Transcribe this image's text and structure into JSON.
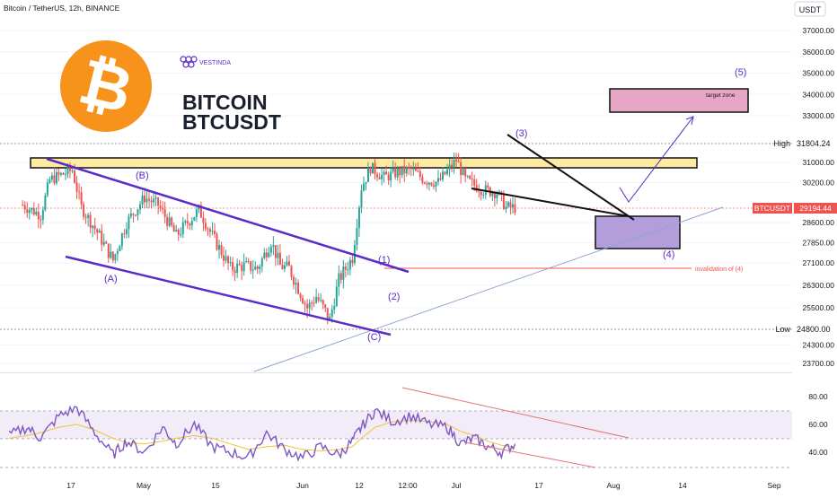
{
  "header": {
    "symbol_line": "Bitcoin / TetherUS, 12h, BINANCE",
    "currency_button": "USDT"
  },
  "brand": {
    "vestinda": "VESTINDA",
    "title": "BITCOIN",
    "pair": "BTCUSDT",
    "logo_glyph": "₿"
  },
  "colors": {
    "bitcoin_orange": "#f7931a",
    "up": "#26a69a",
    "down": "#ef5350",
    "wedge_purple": "#5b2bc8",
    "resistance_fill": "#ffeaa3",
    "target_fill": "#e7a6c4",
    "zone4_fill": "#b39ddb",
    "rsi_line": "#7e57c2",
    "rsi_ma": "#f2c230",
    "trend_red": "#e57373",
    "support_blue": "#90a4d4"
  },
  "annotations": {
    "a": "(A)",
    "b": "(B)",
    "c": "(C)",
    "w1": "(1)",
    "w2": "(2)",
    "w3": "(3)",
    "w4": "(4)",
    "w5": "(5)",
    "target": "target zone",
    "invalidation": "invalidation of (4)"
  },
  "chart_data": [
    {
      "type": "candlestick",
      "title": "Bitcoin / TetherUS, 12h, BINANCE",
      "y_unit": "USDT",
      "y_ticks": [
        37000,
        36000,
        35000,
        34000,
        33000,
        31000,
        30200,
        28600,
        27850,
        27100,
        26300,
        25500,
        24300,
        23700
      ],
      "ylim": [
        23300,
        37800
      ],
      "x_ticks": [
        "17",
        "May",
        "15",
        "Jun",
        "12",
        "12:00",
        "Jul",
        "17",
        "Aug",
        "14",
        "Sep"
      ],
      "high_label": "High",
      "high_value": "31804.24",
      "low_label": "Low",
      "low_value": "24800.00",
      "last_label": "BTCUSDT",
      "last_value": "29194.44",
      "keypoints": [
        {
          "x": "Apr 8",
          "y": 29300
        },
        {
          "x": "Apr 12",
          "y": 28900
        },
        {
          "x": "Apr 14",
          "y": 30300
        },
        {
          "x": "Apr 19",
          "y": 30700
        },
        {
          "x": "Apr 21",
          "y": 29200
        },
        {
          "x": "Apr 25",
          "y": 28100
        },
        {
          "x": "Apr 28",
          "y": 27200
        },
        {
          "x": "May 1",
          "y": 28600
        },
        {
          "x": "May 5",
          "y": 29600
        },
        {
          "x": "May 8",
          "y": 29300
        },
        {
          "x": "May 12",
          "y": 28100
        },
        {
          "x": "May 17",
          "y": 29100
        },
        {
          "x": "May 20",
          "y": 28100
        },
        {
          "x": "May 24",
          "y": 26900
        },
        {
          "x": "May 27",
          "y": 27000
        },
        {
          "x": "May 30",
          "y": 26900
        },
        {
          "x": "Jun 2",
          "y": 27900
        },
        {
          "x": "Jun 4",
          "y": 27000
        },
        {
          "x": "Jun 6",
          "y": 26900
        },
        {
          "x": "Jun 8",
          "y": 26200
        },
        {
          "x": "Jun 10",
          "y": 25500
        },
        {
          "x": "Jun 12",
          "y": 25900
        },
        {
          "x": "Jun 15",
          "y": 25100
        },
        {
          "x": "Jun 17",
          "y": 26500
        },
        {
          "x": "Jun 20",
          "y": 27300
        },
        {
          "x": "Jun 22",
          "y": 30000
        },
        {
          "x": "Jun 24",
          "y": 30800
        },
        {
          "x": "Jun 27",
          "y": 30400
        },
        {
          "x": "Jun 30",
          "y": 30600
        },
        {
          "x": "Jul 3",
          "y": 30700
        },
        {
          "x": "Jul 6",
          "y": 30300
        },
        {
          "x": "Jul 9",
          "y": 30200
        },
        {
          "x": "Jul 13",
          "y": 31100
        },
        {
          "x": "Jul 15",
          "y": 30300
        },
        {
          "x": "Jul 19",
          "y": 29900
        },
        {
          "x": "Jul 22",
          "y": 29800
        },
        {
          "x": "Jul 24",
          "y": 29200
        },
        {
          "x": "Jul 26",
          "y": 29194
        }
      ]
    },
    {
      "type": "line",
      "title": "RSI",
      "y_ticks": [
        80,
        60,
        40
      ],
      "ylim": [
        25,
        90
      ],
      "band": [
        30,
        70
      ],
      "x": [
        "Apr 5",
        "Apr 9",
        "Apr 12",
        "Apr 16",
        "Apr 20",
        "Apr 24",
        "Apr 28",
        "May 1",
        "May 5",
        "May 9",
        "May 12",
        "May 16",
        "May 20",
        "May 24",
        "May 28",
        "Jun 1",
        "Jun 5",
        "Jun 9",
        "Jun 13",
        "Jun 17",
        "Jun 20",
        "Jun 22",
        "Jun 25",
        "Jun 29",
        "Jul 3",
        "Jul 7",
        "Jul 11",
        "Jul 14",
        "Jul 17",
        "Jul 20",
        "Jul 23",
        "Jul 26"
      ],
      "series": [
        {
          "values": [
            52,
            58,
            50,
            66,
            72,
            54,
            38,
            48,
            40,
            58,
            46,
            60,
            44,
            40,
            36,
            54,
            42,
            36,
            44,
            38,
            48,
            58,
            70,
            62,
            66,
            60,
            58,
            46,
            50,
            44,
            40,
            46
          ]
        },
        {
          "values": [
            50,
            52,
            54,
            58,
            60,
            56,
            50,
            47,
            46,
            48,
            50,
            52,
            50,
            46,
            42,
            44,
            45,
            42,
            41,
            42,
            44,
            50,
            58,
            62,
            63,
            62,
            60,
            55,
            52,
            48,
            45,
            44
          ]
        }
      ]
    }
  ]
}
